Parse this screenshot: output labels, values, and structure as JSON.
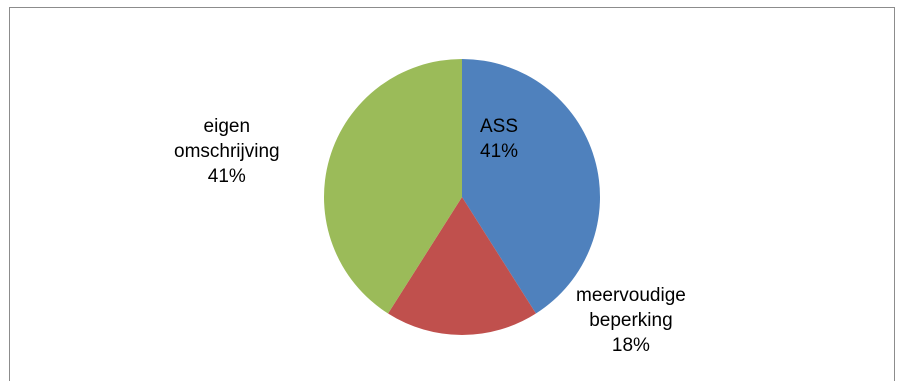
{
  "chart_data": {
    "type": "pie",
    "title": "",
    "slices": [
      {
        "label_lines": [
          "ASS"
        ],
        "value": 41,
        "value_label": "41%",
        "color": "#4f81bd"
      },
      {
        "label_lines": [
          "meervoudige",
          "beperking"
        ],
        "value": 18,
        "value_label": "18%",
        "color": "#c0504d"
      },
      {
        "label_lines": [
          "eigen",
          "omschrijving"
        ],
        "value": 41,
        "value_label": "41%",
        "color": "#9bbb59"
      }
    ],
    "start_angle": "12 o'clock",
    "direction": "clockwise",
    "legend": "none"
  }
}
